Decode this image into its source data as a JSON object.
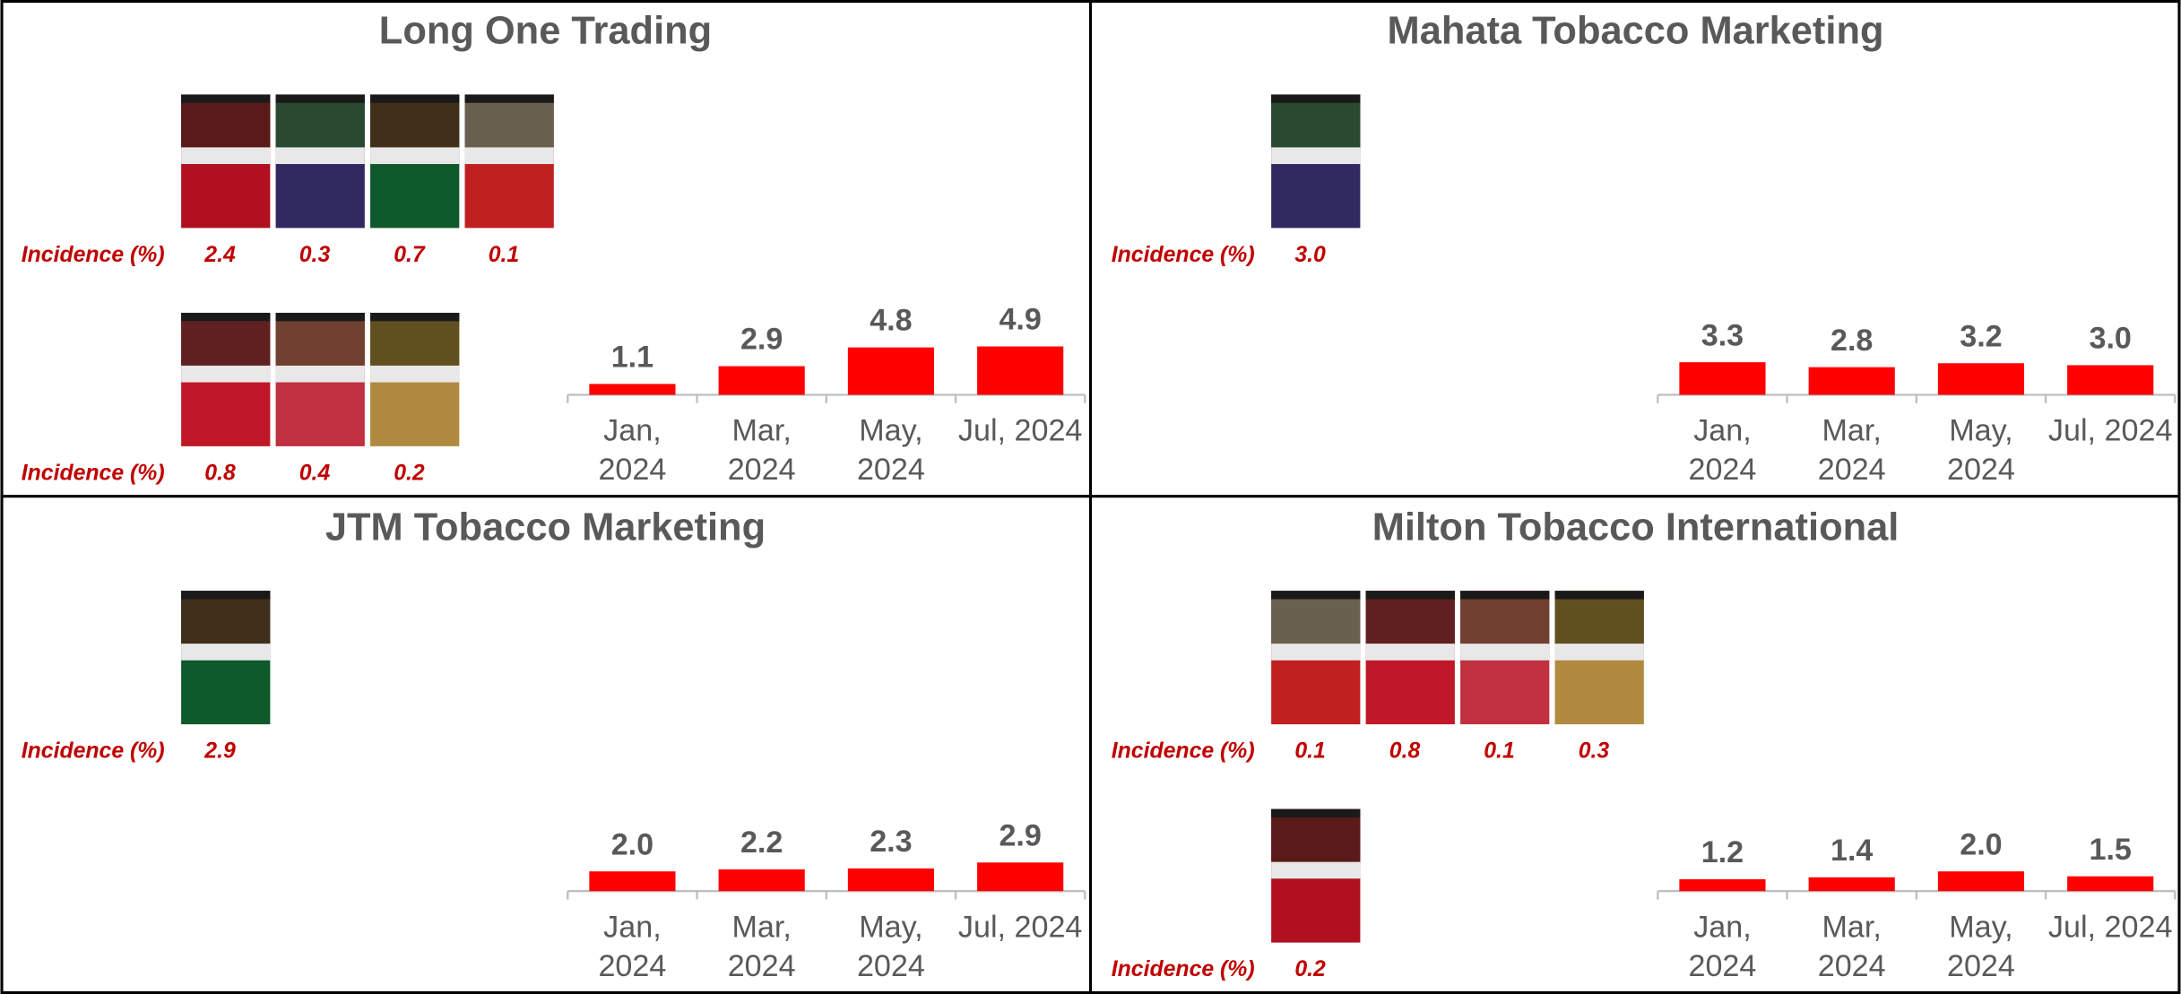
{
  "chart_data": [
    {
      "type": "bar",
      "title": "Long One Trading",
      "categories": [
        "Jan, 2024",
        "Mar, 2024",
        "May, 2024",
        "Jul, 2024"
      ],
      "values": [
        1.1,
        2.9,
        4.8,
        4.9
      ],
      "value_labels": [
        "1.1",
        "2.9",
        "4.8",
        "4.9"
      ],
      "color": "#ff0000",
      "ylim": [
        0,
        10
      ],
      "pack_rows": [
        {
          "label": "Incidence (%)",
          "values": [
            2.4,
            0.3,
            0.7,
            0.1
          ],
          "value_labels": [
            "2.4",
            "0.3",
            "0.7",
            "0.1"
          ]
        },
        {
          "label": "Incidence (%)",
          "values": [
            0.8,
            0.4,
            0.2
          ],
          "value_labels": [
            "0.8",
            "0.4",
            "0.2"
          ]
        }
      ]
    },
    {
      "type": "bar",
      "title": "Mahata Tobacco Marketing",
      "categories": [
        "Jan, 2024",
        "Mar, 2024",
        "May, 2024",
        "Jul, 2024"
      ],
      "values": [
        3.3,
        2.8,
        3.2,
        3.0
      ],
      "value_labels": [
        "3.3",
        "2.8",
        "3.2",
        "3.0"
      ],
      "color": "#ff0000",
      "ylim": [
        0,
        10
      ],
      "pack_rows": [
        {
          "label": "Incidence (%)",
          "values": [
            3.0
          ],
          "value_labels": [
            "3.0"
          ]
        }
      ]
    },
    {
      "type": "bar",
      "title": "JTM Tobacco Marketing",
      "categories": [
        "Jan, 2024",
        "Mar, 2024",
        "May, 2024",
        "Jul, 2024"
      ],
      "values": [
        2.0,
        2.2,
        2.3,
        2.9
      ],
      "value_labels": [
        "2.0",
        "2.2",
        "2.3",
        "2.9"
      ],
      "color": "#ff0000",
      "ylim": [
        0,
        10
      ],
      "pack_rows": [
        {
          "label": "Incidence (%)",
          "values": [
            2.9
          ],
          "value_labels": [
            "2.9"
          ]
        }
      ]
    },
    {
      "type": "bar",
      "title": "Milton Tobacco International",
      "categories": [
        "Jan, 2024",
        "Mar, 2024",
        "May, 2024",
        "Jul, 2024"
      ],
      "values": [
        1.2,
        1.4,
        2.0,
        1.5
      ],
      "value_labels": [
        "1.2",
        "1.4",
        "2.0",
        "1.5"
      ],
      "color": "#ff0000",
      "ylim": [
        0,
        10
      ],
      "pack_rows": [
        {
          "label": "Incidence (%)",
          "values": [
            0.1,
            0.8,
            0.1,
            0.3
          ],
          "value_labels": [
            "0.1",
            "0.8",
            "0.1",
            "0.3"
          ]
        },
        {
          "label": "Incidence (%)",
          "values": [
            0.2
          ],
          "value_labels": [
            "0.2"
          ]
        }
      ]
    }
  ]
}
